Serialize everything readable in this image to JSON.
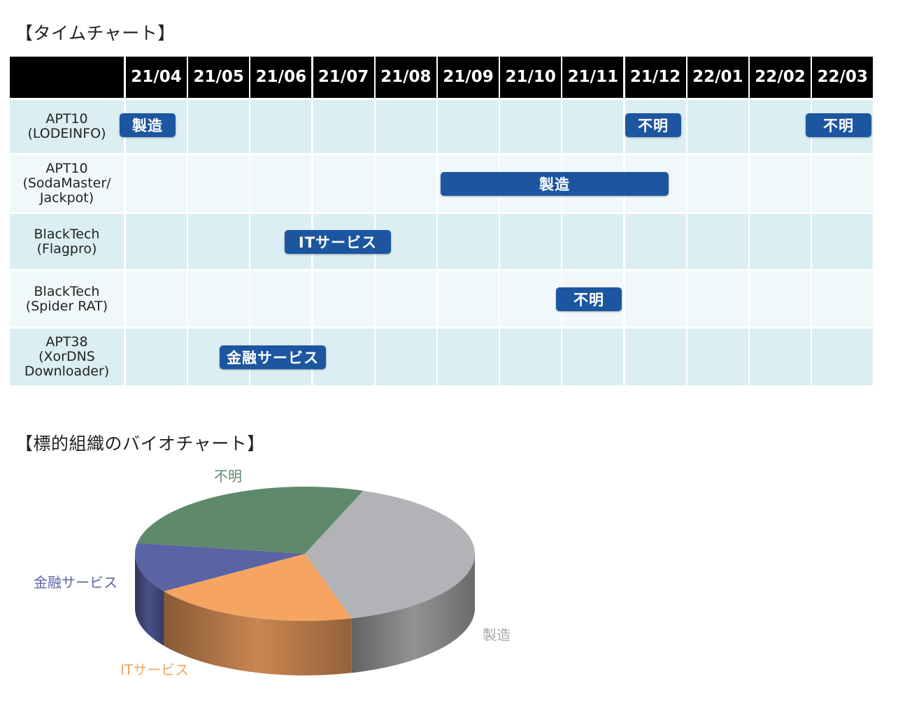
{
  "timeline": {
    "title": "【タイムチャート】",
    "months": [
      "21/04",
      "21/05",
      "21/06",
      "21/07",
      "21/08",
      "21/09",
      "21/10",
      "21/11",
      "21/12",
      "22/01",
      "22/02",
      "22/03"
    ],
    "rows": [
      {
        "label": "APT10\n(LODEINFO)",
        "bars": [
          {
            "label": "製造",
            "start": 0,
            "end": 0.9
          },
          {
            "label": "不明",
            "start": 8.1,
            "end": 9.0
          },
          {
            "label": "不明",
            "start": 11.0,
            "end": 12.05
          }
        ]
      },
      {
        "label": "APT10\n(SodaMaster/\nJackpot)",
        "bars": [
          {
            "label": "製造",
            "start": 5.15,
            "end": 8.8
          }
        ]
      },
      {
        "label": "BlackTech\n(Flagpro)",
        "bars": [
          {
            "label": "ITサービス",
            "start": 2.65,
            "end": 4.35
          }
        ]
      },
      {
        "label": "BlackTech\n(Spider RAT)",
        "bars": [
          {
            "label": "不明",
            "start": 7.0,
            "end": 8.05
          }
        ]
      },
      {
        "label": "APT38\n(XorDNS\nDownloader)",
        "bars": [
          {
            "label": "金融サービス",
            "start": 1.6,
            "end": 3.3
          }
        ]
      }
    ],
    "colors": {
      "header_bg": "#000000",
      "row_dark": "#dbeef2",
      "row_light": "#f1f8fa",
      "bar": "#1c56a0"
    }
  },
  "chart_data": {
    "type": "pie",
    "title": "【標的組織のバイオチャート】",
    "labels": [
      "製造",
      "ITサービス",
      "金融サービス",
      "不明"
    ],
    "values": [
      40,
      20,
      12,
      28
    ],
    "colors": [
      "#b1b3b6",
      "#f5a462",
      "#5a63a3",
      "#5e8a6b"
    ]
  }
}
